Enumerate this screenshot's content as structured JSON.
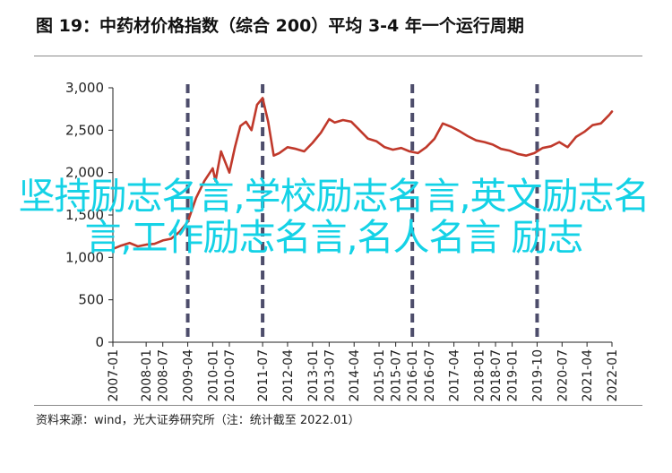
{
  "figure": {
    "title": "图 19：中药材价格指数（综合 200）平均 3-4 年一个运行周期",
    "source": "资料来源：wind，光大证券研究所（注：统计截至 2022.01）",
    "watermark": "坚持励志名言,学校励志名言,英文励志名言,工作励志名言,名人名言 励志"
  },
  "chart_data": {
    "type": "line",
    "title": "",
    "xlabel": "",
    "ylabel": "",
    "x_ticks": [
      "2007-01",
      "2008-01",
      "2008-07",
      "2009-04",
      "2010-01",
      "2010-07",
      "2011-07",
      "2012-04",
      "2013-01",
      "2013-07",
      "2014-04",
      "2015-01",
      "2015-07",
      "2016-01",
      "2016-07",
      "2017-04",
      "2018-01",
      "2018-07",
      "2019-01",
      "2019-10",
      "2020-07",
      "2021-04",
      "2022-01"
    ],
    "y_ticks": [
      "0",
      "500",
      "1,000",
      "1,500",
      "2,000",
      "2,500",
      "3,000"
    ],
    "ylim": [
      0,
      3000
    ],
    "grid": false,
    "series": [
      {
        "color": "#c0392b",
        "points": [
          [
            "2007-01",
            1100
          ],
          [
            "2007-04",
            1140
          ],
          [
            "2007-07",
            1170
          ],
          [
            "2007-10",
            1130
          ],
          [
            "2008-01",
            1150
          ],
          [
            "2008-04",
            1160
          ],
          [
            "2008-07",
            1200
          ],
          [
            "2008-10",
            1220
          ],
          [
            "2009-01",
            1300
          ],
          [
            "2009-04",
            1420
          ],
          [
            "2009-07",
            1700
          ],
          [
            "2009-10",
            1900
          ],
          [
            "2010-01",
            2050
          ],
          [
            "2010-02",
            1900
          ],
          [
            "2010-04",
            2250
          ],
          [
            "2010-07",
            2000
          ],
          [
            "2010-09",
            2300
          ],
          [
            "2010-11",
            2550
          ],
          [
            "2011-01",
            2600
          ],
          [
            "2011-03",
            2500
          ],
          [
            "2011-05",
            2800
          ],
          [
            "2011-07",
            2880
          ],
          [
            "2011-09",
            2600
          ],
          [
            "2011-11",
            2200
          ],
          [
            "2012-01",
            2230
          ],
          [
            "2012-04",
            2300
          ],
          [
            "2012-07",
            2280
          ],
          [
            "2012-10",
            2250
          ],
          [
            "2013-01",
            2350
          ],
          [
            "2013-04",
            2470
          ],
          [
            "2013-07",
            2630
          ],
          [
            "2013-09",
            2590
          ],
          [
            "2013-12",
            2620
          ],
          [
            "2014-03",
            2600
          ],
          [
            "2014-06",
            2500
          ],
          [
            "2014-09",
            2400
          ],
          [
            "2014-12",
            2370
          ],
          [
            "2015-03",
            2300
          ],
          [
            "2015-06",
            2270
          ],
          [
            "2015-09",
            2290
          ],
          [
            "2015-12",
            2250
          ],
          [
            "2016-03",
            2230
          ],
          [
            "2016-06",
            2300
          ],
          [
            "2016-09",
            2400
          ],
          [
            "2016-12",
            2580
          ],
          [
            "2017-03",
            2540
          ],
          [
            "2017-06",
            2490
          ],
          [
            "2017-09",
            2430
          ],
          [
            "2017-12",
            2380
          ],
          [
            "2018-03",
            2360
          ],
          [
            "2018-06",
            2330
          ],
          [
            "2018-09",
            2280
          ],
          [
            "2018-12",
            2260
          ],
          [
            "2019-03",
            2220
          ],
          [
            "2019-06",
            2200
          ],
          [
            "2019-09",
            2230
          ],
          [
            "2019-12",
            2290
          ],
          [
            "2020-03",
            2310
          ],
          [
            "2020-06",
            2360
          ],
          [
            "2020-09",
            2300
          ],
          [
            "2020-12",
            2420
          ],
          [
            "2021-03",
            2480
          ],
          [
            "2021-06",
            2560
          ],
          [
            "2021-09",
            2580
          ],
          [
            "2021-12",
            2680
          ],
          [
            "2022-01",
            2720
          ]
        ]
      }
    ],
    "cycle_markers": [
      "2009-04",
      "2011-07",
      "2016-01",
      "2019-10"
    ],
    "colors": {
      "line": "#c0392b",
      "cycle_marker": "#4d4d6b",
      "axis": "#222222",
      "watermark": "#14d2e6"
    }
  }
}
